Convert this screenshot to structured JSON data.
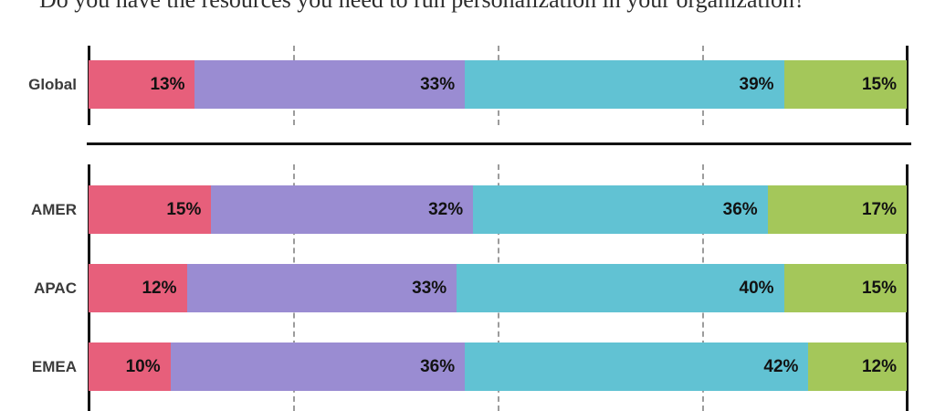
{
  "chart_data": {
    "type": "bar",
    "stacked": true,
    "orientation": "horizontal",
    "title": "Do you have the resources you need to run personalization in your organization?",
    "categories": [
      "Global",
      "AMER",
      "APAC",
      "EMEA"
    ],
    "row_groups": [
      [
        "Global"
      ],
      [
        "AMER",
        "APAC",
        "EMEA"
      ]
    ],
    "series": [
      {
        "name": "series-1",
        "color": "#E75F7B",
        "values": [
          13,
          15,
          12,
          10
        ]
      },
      {
        "name": "series-2",
        "color": "#9A8CD2",
        "values": [
          33,
          32,
          33,
          36
        ]
      },
      {
        "name": "series-3",
        "color": "#61C2D3",
        "values": [
          39,
          36,
          40,
          42
        ]
      },
      {
        "name": "series-4",
        "color": "#A4C75A",
        "values": [
          15,
          17,
          15,
          12
        ]
      }
    ],
    "value_format": "percent",
    "value_suffix": "%",
    "xlim": [
      0,
      100
    ],
    "gridlines_percent": [
      25,
      50,
      75
    ],
    "grid_style": "dashed-vertical",
    "axis_color": "#141414",
    "gridline_color": "#9c9c9c",
    "legend": "none"
  }
}
